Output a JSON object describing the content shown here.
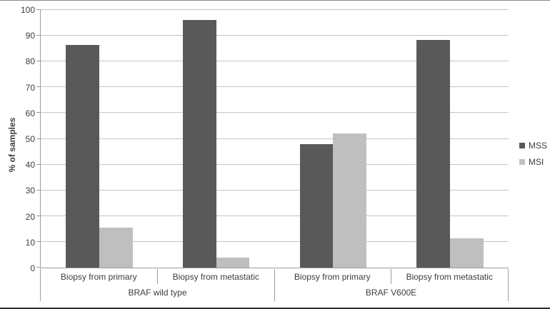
{
  "chart_data": {
    "type": "bar",
    "title": "",
    "xlabel": "",
    "ylabel": "% of samples",
    "ylim": [
      0,
      100
    ],
    "ytick_step": 10,
    "yticks": [
      0,
      10,
      20,
      30,
      40,
      50,
      60,
      70,
      80,
      90,
      100
    ],
    "grid": true,
    "legend_position": "right",
    "categories": [
      "Biopsy from primary",
      "Biopsy from metastatic",
      "Biopsy from primary",
      "Biopsy from metastatic"
    ],
    "groups": [
      {
        "label": "BRAF wild type",
        "categories": [
          "Biopsy from primary",
          "Biopsy from metastatic"
        ]
      },
      {
        "label": "BRAF V600E",
        "categories": [
          "Biopsy from primary",
          "Biopsy from metastatic"
        ]
      }
    ],
    "series": [
      {
        "name": "MSS",
        "color": "#595959",
        "values": [
          86.5,
          96,
          48,
          88.5
        ]
      },
      {
        "name": "MSI",
        "color": "#BFBFBF",
        "values": [
          15.5,
          4,
          52,
          11.5
        ]
      }
    ]
  },
  "colors": {
    "background": "#FFFFFF",
    "text": "#3D3D3D",
    "axis": "#9C9C9C",
    "gridline": "#C4C4C4",
    "frame_top": "#8A8A8A",
    "frame_bottom": "#2E2E2E",
    "mss": "#595959",
    "msi": "#BFBFBF"
  }
}
